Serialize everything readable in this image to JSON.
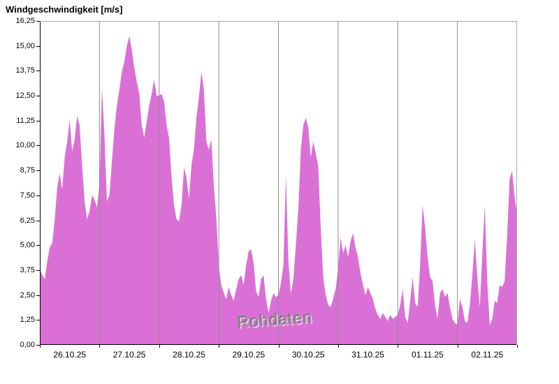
{
  "header": {
    "title": "Windgeschwindigkeit [m/s]"
  },
  "chart_data": {
    "type": "area",
    "title": "Windgeschwindigkeit [m/s]",
    "watermark": "Rohdaten",
    "ylabel": "Windgeschwindigkeit [m/s]",
    "xlabel": "",
    "ylim": [
      0,
      16.25
    ],
    "y_tick_values": [
      0,
      1.25,
      2.5,
      3.75,
      5,
      6.25,
      7.5,
      8.75,
      10,
      11.25,
      12.5,
      13.75,
      15,
      16.25
    ],
    "y_tick_labels": [
      "0,00",
      "1,25",
      "2,50",
      "3,75",
      "5,00",
      "6,25",
      "7,50",
      "8,75",
      "10,00",
      "11,25",
      "12,50",
      "13,75",
      "15,00",
      "16,25"
    ],
    "x_tick_labels": [
      "26.10.25",
      "27.10.25",
      "28.10.25",
      "29.10.25",
      "30.10.25",
      "31.10.25",
      "01.11.25",
      "02.11.25"
    ],
    "x_days": 8,
    "sampling": "hourly values from 26.10.25 00:00 to 03.11.25 00:00",
    "grid": "vertical-day-lines",
    "legend": "none",
    "colors": {
      "area": "#da70d6",
      "grid": "#8c8c8c",
      "axis": "#000000",
      "border_light": "#a8a8a8",
      "watermark": "#8f8f8f",
      "background": "#ffffff"
    },
    "values": [
      3.8,
      3.5,
      3.3,
      4.2,
      4.9,
      5.1,
      6.3,
      7.9,
      8.6,
      7.8,
      9.4,
      10.2,
      11.3,
      9.7,
      10.3,
      11.5,
      11.0,
      9.0,
      7.2,
      6.3,
      6.7,
      7.5,
      7.3,
      6.9,
      8.0,
      12.9,
      10.5,
      7.2,
      7.5,
      9.2,
      10.8,
      12.0,
      12.8,
      13.7,
      14.2,
      15.0,
      15.5,
      14.8,
      13.9,
      13.2,
      12.6,
      11.0,
      10.4,
      11.2,
      12.0,
      12.6,
      13.3,
      12.5,
      12.5,
      12.6,
      12.2,
      11.0,
      10.4,
      8.4,
      7.0,
      6.3,
      6.2,
      7.0,
      8.9,
      8.4,
      7.3,
      9.0,
      9.8,
      11.4,
      12.4,
      13.7,
      12.8,
      10.2,
      9.8,
      10.3,
      8.0,
      6.4,
      3.9,
      3.0,
      2.6,
      2.3,
      2.9,
      2.5,
      2.2,
      2.8,
      3.3,
      3.5,
      3.0,
      4.0,
      4.7,
      4.8,
      4.1,
      2.7,
      2.4,
      3.3,
      3.5,
      2.3,
      1.6,
      2.2,
      2.6,
      2.4,
      2.5,
      3.1,
      4.0,
      8.5,
      4.2,
      2.6,
      3.3,
      5.0,
      6.8,
      9.8,
      11.0,
      11.4,
      10.9,
      9.4,
      10.2,
      9.6,
      9.0,
      5.9,
      3.4,
      2.5,
      2.0,
      1.9,
      2.3,
      2.8,
      3.8,
      5.4,
      4.6,
      5.0,
      4.4,
      5.2,
      5.6,
      4.9,
      4.4,
      3.6,
      3.0,
      2.5,
      2.9,
      2.6,
      2.3,
      1.8,
      1.5,
      1.3,
      1.6,
      1.4,
      1.2,
      1.5,
      1.3,
      1.4,
      1.5,
      2.0,
      2.8,
      1.4,
      1.1,
      2.2,
      3.4,
      2.1,
      1.9,
      4.0,
      7.0,
      5.9,
      4.4,
      3.4,
      3.2,
      2.0,
      1.3,
      2.6,
      2.8,
      2.4,
      2.6,
      1.9,
      1.3,
      1.1,
      1.0,
      2.3,
      1.9,
      1.2,
      1.1,
      2.0,
      3.5,
      5.3,
      3.4,
      1.9,
      4.5,
      7.0,
      3.2,
      1.0,
      1.3,
      2.2,
      2.1,
      3.0,
      2.9,
      3.2,
      5.5,
      8.3,
      8.75,
      7.4,
      6.6
    ]
  }
}
